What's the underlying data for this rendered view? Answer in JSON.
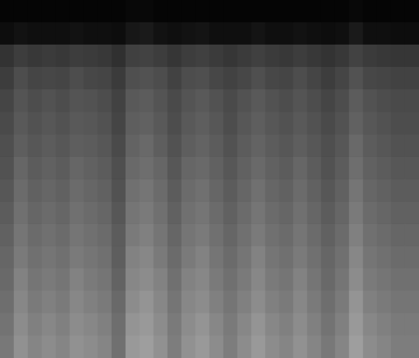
{
  "chart_data": {
    "type": "heatmap",
    "tick_labels": false,
    "zlim": [
      0,
      1
    ],
    "z": [
      [
        0.02,
        0.02,
        0.02,
        0.02,
        0.02,
        0.02,
        0.02,
        0.02,
        0.02,
        0.03,
        0.03,
        0.02,
        0.02,
        0.02,
        0.02,
        0.02,
        0.02,
        0.02,
        0.02,
        0.02,
        0.02,
        0.02,
        0.02,
        0.02,
        0.02,
        0.03,
        0.02,
        0.02,
        0.02,
        0.02
      ],
      [
        0.05,
        0.07,
        0.06,
        0.06,
        0.06,
        0.07,
        0.06,
        0.06,
        0.05,
        0.09,
        0.1,
        0.07,
        0.06,
        0.07,
        0.08,
        0.06,
        0.06,
        0.06,
        0.08,
        0.06,
        0.06,
        0.07,
        0.06,
        0.05,
        0.06,
        0.1,
        0.06,
        0.06,
        0.05,
        0.05
      ],
      [
        0.2,
        0.24,
        0.22,
        0.23,
        0.22,
        0.24,
        0.23,
        0.22,
        0.19,
        0.25,
        0.26,
        0.24,
        0.21,
        0.24,
        0.25,
        0.23,
        0.21,
        0.23,
        0.25,
        0.23,
        0.22,
        0.24,
        0.22,
        0.2,
        0.22,
        0.26,
        0.23,
        0.22,
        0.21,
        0.21
      ],
      [
        0.24,
        0.3,
        0.27,
        0.28,
        0.27,
        0.3,
        0.28,
        0.27,
        0.23,
        0.31,
        0.32,
        0.3,
        0.26,
        0.3,
        0.31,
        0.28,
        0.26,
        0.28,
        0.31,
        0.28,
        0.27,
        0.3,
        0.27,
        0.24,
        0.27,
        0.32,
        0.28,
        0.27,
        0.26,
        0.26
      ],
      [
        0.27,
        0.33,
        0.3,
        0.32,
        0.3,
        0.33,
        0.32,
        0.3,
        0.26,
        0.35,
        0.36,
        0.33,
        0.29,
        0.33,
        0.35,
        0.32,
        0.29,
        0.32,
        0.35,
        0.32,
        0.3,
        0.33,
        0.3,
        0.27,
        0.3,
        0.36,
        0.32,
        0.3,
        0.29,
        0.29
      ],
      [
        0.29,
        0.35,
        0.32,
        0.34,
        0.32,
        0.35,
        0.34,
        0.32,
        0.27,
        0.37,
        0.38,
        0.35,
        0.3,
        0.35,
        0.37,
        0.34,
        0.3,
        0.34,
        0.37,
        0.34,
        0.32,
        0.35,
        0.32,
        0.29,
        0.32,
        0.38,
        0.34,
        0.32,
        0.3,
        0.3
      ],
      [
        0.31,
        0.37,
        0.34,
        0.36,
        0.34,
        0.37,
        0.36,
        0.34,
        0.29,
        0.39,
        0.41,
        0.37,
        0.32,
        0.37,
        0.39,
        0.36,
        0.32,
        0.36,
        0.39,
        0.36,
        0.34,
        0.37,
        0.34,
        0.31,
        0.34,
        0.41,
        0.36,
        0.34,
        0.32,
        0.32
      ],
      [
        0.32,
        0.4,
        0.36,
        0.38,
        0.36,
        0.4,
        0.38,
        0.36,
        0.31,
        0.41,
        0.43,
        0.4,
        0.34,
        0.4,
        0.41,
        0.38,
        0.34,
        0.38,
        0.41,
        0.38,
        0.36,
        0.4,
        0.36,
        0.32,
        0.36,
        0.43,
        0.38,
        0.36,
        0.34,
        0.34
      ],
      [
        0.34,
        0.42,
        0.38,
        0.4,
        0.38,
        0.42,
        0.4,
        0.38,
        0.32,
        0.44,
        0.46,
        0.42,
        0.36,
        0.42,
        0.44,
        0.4,
        0.36,
        0.4,
        0.44,
        0.4,
        0.38,
        0.42,
        0.38,
        0.34,
        0.38,
        0.46,
        0.4,
        0.38,
        0.36,
        0.36
      ],
      [
        0.36,
        0.44,
        0.4,
        0.42,
        0.4,
        0.44,
        0.42,
        0.4,
        0.34,
        0.46,
        0.48,
        0.44,
        0.38,
        0.44,
        0.46,
        0.42,
        0.38,
        0.42,
        0.46,
        0.42,
        0.4,
        0.44,
        0.4,
        0.36,
        0.4,
        0.48,
        0.42,
        0.4,
        0.38,
        0.38
      ],
      [
        0.38,
        0.46,
        0.42,
        0.44,
        0.42,
        0.46,
        0.44,
        0.42,
        0.36,
        0.48,
        0.5,
        0.46,
        0.4,
        0.46,
        0.48,
        0.44,
        0.4,
        0.44,
        0.48,
        0.44,
        0.42,
        0.46,
        0.42,
        0.38,
        0.42,
        0.5,
        0.44,
        0.42,
        0.4,
        0.4
      ],
      [
        0.4,
        0.48,
        0.44,
        0.46,
        0.44,
        0.48,
        0.46,
        0.44,
        0.37,
        0.51,
        0.53,
        0.48,
        0.42,
        0.48,
        0.51,
        0.46,
        0.42,
        0.46,
        0.51,
        0.46,
        0.44,
        0.48,
        0.44,
        0.4,
        0.44,
        0.53,
        0.46,
        0.44,
        0.42,
        0.42
      ],
      [
        0.41,
        0.51,
        0.46,
        0.48,
        0.46,
        0.51,
        0.48,
        0.46,
        0.39,
        0.53,
        0.55,
        0.51,
        0.44,
        0.51,
        0.53,
        0.48,
        0.44,
        0.48,
        0.53,
        0.48,
        0.46,
        0.51,
        0.46,
        0.41,
        0.46,
        0.55,
        0.48,
        0.46,
        0.44,
        0.44
      ],
      [
        0.43,
        0.53,
        0.48,
        0.5,
        0.48,
        0.53,
        0.5,
        0.48,
        0.41,
        0.55,
        0.58,
        0.53,
        0.46,
        0.53,
        0.55,
        0.5,
        0.46,
        0.5,
        0.55,
        0.5,
        0.48,
        0.53,
        0.48,
        0.43,
        0.48,
        0.58,
        0.5,
        0.48,
        0.46,
        0.46
      ],
      [
        0.45,
        0.55,
        0.5,
        0.53,
        0.5,
        0.55,
        0.53,
        0.5,
        0.43,
        0.58,
        0.6,
        0.55,
        0.48,
        0.55,
        0.58,
        0.53,
        0.48,
        0.53,
        0.58,
        0.53,
        0.5,
        0.55,
        0.5,
        0.45,
        0.5,
        0.6,
        0.53,
        0.5,
        0.48,
        0.48
      ],
      [
        0.47,
        0.57,
        0.52,
        0.55,
        0.52,
        0.57,
        0.55,
        0.52,
        0.44,
        0.6,
        0.62,
        0.57,
        0.49,
        0.57,
        0.6,
        0.55,
        0.49,
        0.55,
        0.6,
        0.55,
        0.52,
        0.57,
        0.52,
        0.47,
        0.52,
        0.62,
        0.55,
        0.52,
        0.49,
        0.49
      ]
    ]
  }
}
